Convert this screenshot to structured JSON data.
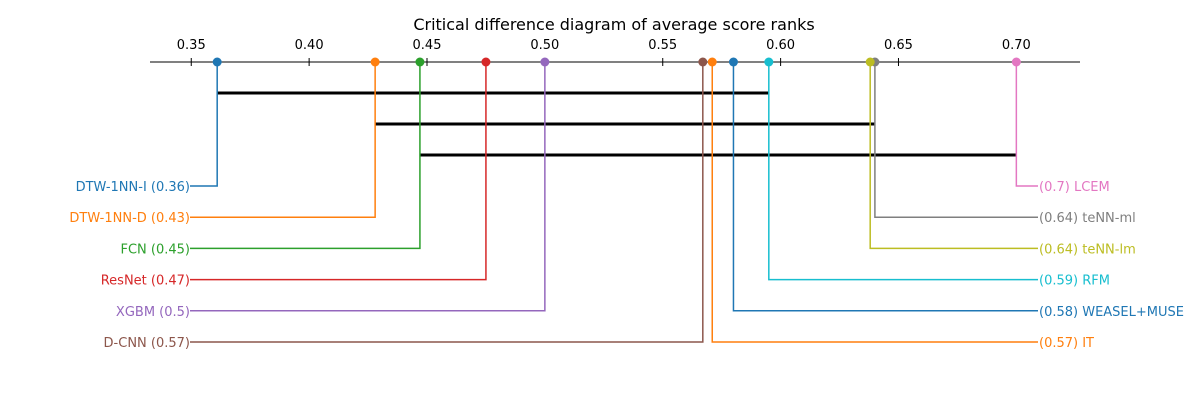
{
  "chart_data": {
    "type": "critical-difference-diagram",
    "title": "Critical difference diagram of average score ranks",
    "axis": {
      "xlim": [
        0.3325,
        0.727
      ],
      "ticks": [
        0.35,
        0.4,
        0.45,
        0.5,
        0.55,
        0.6,
        0.65,
        0.7
      ],
      "tick_labels": [
        "0.35",
        "0.40",
        "0.45",
        "0.50",
        "0.55",
        "0.60",
        "0.65",
        "0.70"
      ]
    },
    "methods_left": [
      {
        "name": "DTW-1NN-I",
        "score": 0.361,
        "label": "DTW-1NN-I (0.36)",
        "color": "#1f77b4"
      },
      {
        "name": "DTW-1NN-D",
        "score": 0.428,
        "label": "DTW-1NN-D (0.43)",
        "color": "#ff7f0e"
      },
      {
        "name": "FCN",
        "score": 0.447,
        "label": "FCN (0.45)",
        "color": "#2ca02c"
      },
      {
        "name": "ResNet",
        "score": 0.475,
        "label": "ResNet (0.47)",
        "color": "#d62728"
      },
      {
        "name": "XGBM",
        "score": 0.5,
        "label": "XGBM (0.5)",
        "color": "#9467bd"
      },
      {
        "name": "D-CNN",
        "score": 0.567,
        "label": "D-CNN (0.57)",
        "color": "#8c564b"
      }
    ],
    "methods_right": [
      {
        "name": "LCEM",
        "score": 0.7,
        "label": "(0.7) LCEM",
        "color": "#e377c2"
      },
      {
        "name": "teNN-ml",
        "score": 0.64,
        "label": "(0.64) teNN-ml",
        "color": "#7f7f7f"
      },
      {
        "name": "teNN-lm",
        "score": 0.638,
        "label": "(0.64) teNN-lm",
        "color": "#bcbd22"
      },
      {
        "name": "RFM",
        "score": 0.595,
        "label": "(0.59) RFM",
        "color": "#17becf"
      },
      {
        "name": "WEASEL+MUSE",
        "score": 0.58,
        "label": "(0.58) WEASEL+MUSE",
        "color": "#1f77b4"
      },
      {
        "name": "IT",
        "score": 0.571,
        "label": "(0.57) IT",
        "color": "#ff7f0e"
      }
    ],
    "cliques": [
      {
        "from": 0.361,
        "to": 0.595
      },
      {
        "from": 0.428,
        "to": 0.64
      },
      {
        "from": 0.447,
        "to": 0.7
      }
    ]
  }
}
